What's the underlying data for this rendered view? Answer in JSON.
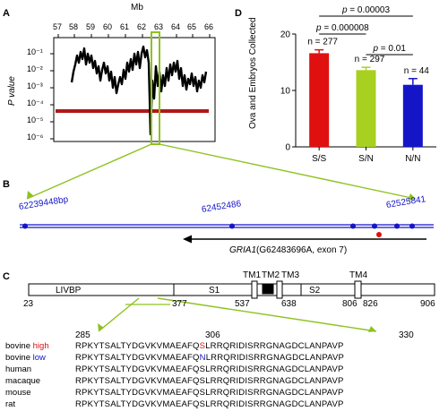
{
  "panels": {
    "A": "A",
    "B": "B",
    "C": "C",
    "D": "D"
  },
  "panelA": {
    "axis_title_top": "Mb",
    "ylabel": "P value",
    "x_ticks": [
      "57",
      "58",
      "59",
      "60",
      "61",
      "62",
      "63",
      "64",
      "65",
      "66"
    ],
    "y_ticks": [
      "10⁻¹",
      "10⁻²",
      "10⁻³",
      "10⁻⁴",
      "10⁻⁵",
      "10⁻⁶"
    ],
    "threshold_color": "#b01818",
    "highlight_color": "#8ec21f"
  },
  "panelB": {
    "positions": [
      "62239448bp",
      "62452486",
      "62525841"
    ],
    "gene_label": "GRIA1(G62483696A, exon 7)",
    "gene_italic": "GRIA1",
    "gene_rest": "(G62483696A, exon 7)",
    "marker_color": "#1515c8",
    "snp_color": "#e01010"
  },
  "panelC": {
    "domains": [
      "LIVBP",
      "S1",
      "S2",
      "TM1",
      "TM2",
      "TM3",
      "TM4"
    ],
    "scale_numbers": [
      "23",
      "377",
      "537",
      "638",
      "806",
      "826",
      "906"
    ],
    "zoom_numbers": [
      "285",
      "306",
      "330"
    ],
    "sequences": [
      {
        "species": "bovine",
        "tag": "high",
        "pre": "RPKYTSALTYDGVKVMAEAFQ",
        "aa": "S",
        "post": "LRRQRIDISRRGNAGDCLANPAVP",
        "color": "#e01010"
      },
      {
        "species": "bovine",
        "tag": "low",
        "pre": "RPKYTSALTYDGVKVMAEAFQ",
        "aa": "N",
        "post": "LRRQRIDISRRGNAGDCLANPAVP",
        "color": "#1515c8"
      },
      {
        "species": "human",
        "tag": "",
        "pre": "RPKYTSALTYDGVKVMAEAFQ",
        "aa": "S",
        "post": "LRRQRIDISRRGNAGDCLANPAVP",
        "color": ""
      },
      {
        "species": "macaque",
        "tag": "",
        "pre": "RPKYTSALTYDGVKVMAEAFQ",
        "aa": "S",
        "post": "LRRQRIDISRRGNAGDCLANPAVP",
        "color": ""
      },
      {
        "species": "mouse",
        "tag": "",
        "pre": "RPKYTSALTYDGVKVMAEAFQ",
        "aa": "S",
        "post": "LRRQRIDISRRGNAGDCLANPAVP",
        "color": ""
      },
      {
        "species": "rat",
        "tag": "",
        "pre": "RPKYTSALTYDGVKVMAEAFQ",
        "aa": "S",
        "post": "LRRQRIDISRRGNAGDCLANPAVP",
        "color": ""
      }
    ]
  },
  "chart_data": {
    "type": "bar",
    "categories": [
      "S/S",
      "S/N",
      "N/N"
    ],
    "values": [
      16.6,
      13.6,
      11.0
    ],
    "errors": [
      0.6,
      0.5,
      1.1
    ],
    "colors": [
      "#e01010",
      "#a8d020",
      "#1515c8"
    ],
    "n_labels": [
      "n = 277",
      "n = 297",
      "n = 44"
    ],
    "ylabel": "Ova and Embryos Collected",
    "yticks": [
      "0",
      "10",
      "20"
    ],
    "ylim": [
      0,
      20
    ],
    "comparisons": [
      {
        "label": "p = 0.00003",
        "from": 0,
        "to": 2
      },
      {
        "label": "p = 0.000008",
        "from": 0,
        "to": 1
      },
      {
        "label": "p = 0.01",
        "from": 1,
        "to": 2
      }
    ]
  }
}
